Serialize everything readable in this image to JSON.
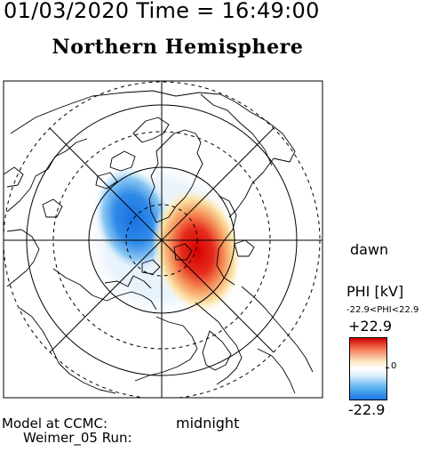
{
  "header": {
    "datetime": "01/03/2020 Time = 16:49:00",
    "hemisphere": "Northern Hemisphere"
  },
  "map": {
    "dawn_label": "dawn",
    "midnight_label": "midnight",
    "center_pole": "north-pole",
    "layers": [
      "potential-contours",
      "coastlines",
      "latitude-circles",
      "meridians"
    ],
    "colors": {
      "positive": "#e01010",
      "negative": "#1e7ee6",
      "neutral": "#ffffff",
      "lines": "#000000"
    }
  },
  "footer": {
    "model_line": "Model at CCMC:",
    "run_line": "Weimer_05 Run:"
  },
  "colorbar": {
    "title": "PHI [kV]",
    "range_text": "-22.9<PHI<22.9",
    "max_label": "+22.9",
    "zero_label": "0",
    "min_label": "-22.9",
    "max": 22.9,
    "min": -22.9
  }
}
